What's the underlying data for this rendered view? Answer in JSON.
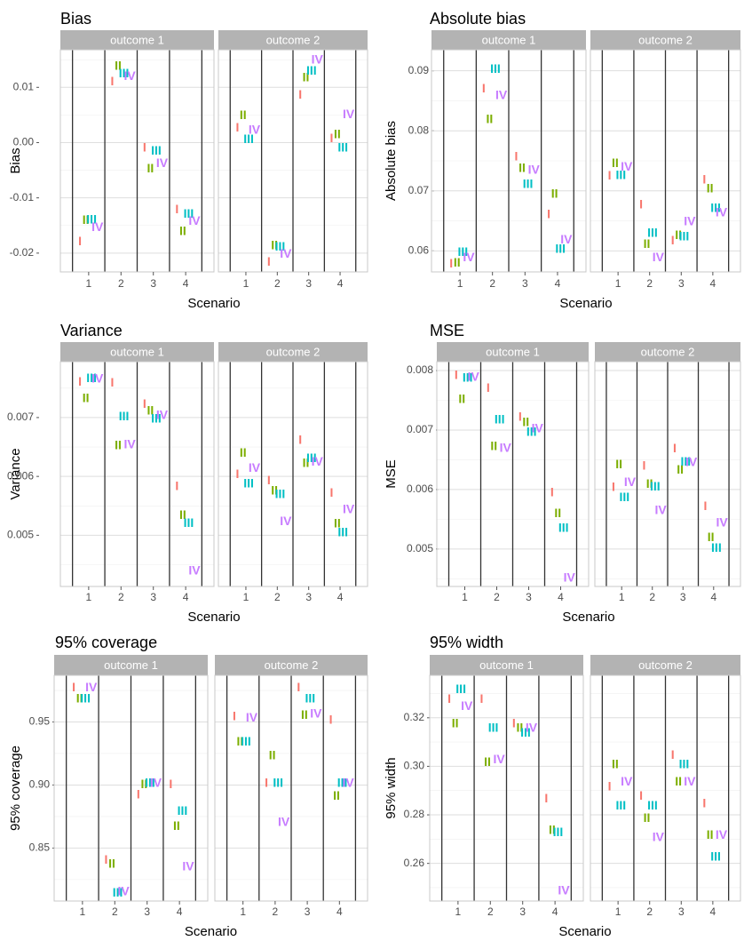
{
  "figure": {
    "colors": {
      "I": "#F8766D",
      "II": "#7CAE00",
      "III": "#00BFC4",
      "IV": "#C77CFF"
    },
    "facets": [
      "outcome 1",
      "outcome 2"
    ],
    "method_labels": [
      "I",
      "II",
      "III",
      "IV"
    ]
  },
  "chart_data": [
    {
      "type": "scatter",
      "title": "Bias",
      "xlabel": "Scenario",
      "ylabel": "Bias",
      "categories": [
        "1",
        "2",
        "3",
        "4"
      ],
      "ylim": [
        -0.0234,
        0.0168
      ],
      "yticks": [
        -0.02,
        -0.01,
        0.0,
        0.01
      ],
      "ytick_labels": [
        "-0.02",
        "-0.01",
        "0.00",
        "0.01"
      ],
      "panels": [
        {
          "facet": "outcome 1",
          "series": [
            {
              "name": "I",
              "values": [
                -0.0178,
                0.0112,
                -0.0008,
                -0.012
              ]
            },
            {
              "name": "II",
              "values": [
                -0.0139,
                0.014,
                -0.0046,
                -0.0159
              ]
            },
            {
              "name": "III",
              "values": [
                -0.0138,
                0.0126,
                -0.0014,
                -0.0128
              ]
            },
            {
              "name": "IV",
              "values": [
                -0.0152,
                0.0121,
                -0.0036,
                -0.0141
              ]
            }
          ]
        },
        {
          "facet": "outcome 2",
          "series": [
            {
              "name": "I",
              "values": [
                0.0028,
                -0.0215,
                0.0088,
                0.0009
              ]
            },
            {
              "name": "II",
              "values": [
                0.0051,
                -0.0185,
                0.0119,
                0.0016
              ]
            },
            {
              "name": "III",
              "values": [
                0.0007,
                -0.0187,
                0.0131,
                -0.0008
              ]
            },
            {
              "name": "IV",
              "values": [
                0.0024,
                -0.02,
                0.0151,
                0.0052
              ]
            }
          ]
        }
      ]
    },
    {
      "type": "scatter",
      "title": "Absolute bias",
      "xlabel": "Scenario",
      "ylabel": "Absolute bias",
      "categories": [
        "1",
        "2",
        "3",
        "4"
      ],
      "ylim": [
        0.0565,
        0.0935
      ],
      "yticks": [
        0.06,
        0.07,
        0.08,
        0.09
      ],
      "ytick_labels": [
        "0.06",
        "0.07",
        "0.08",
        "0.09"
      ],
      "panels": [
        {
          "facet": "outcome 1",
          "series": [
            {
              "name": "I",
              "values": [
                0.058,
                0.0871,
                0.0758,
                0.0662
              ]
            },
            {
              "name": "II",
              "values": [
                0.0581,
                0.082,
                0.0739,
                0.0696
              ]
            },
            {
              "name": "III",
              "values": [
                0.0599,
                0.0904,
                0.0712,
                0.0604
              ]
            },
            {
              "name": "IV",
              "values": [
                0.059,
                0.086,
                0.0736,
                0.062
              ]
            }
          ]
        },
        {
          "facet": "outcome 2",
          "series": [
            {
              "name": "I",
              "values": [
                0.0726,
                0.0678,
                0.0618,
                0.072
              ]
            },
            {
              "name": "II",
              "values": [
                0.0747,
                0.0612,
                0.0627,
                0.0705
              ]
            },
            {
              "name": "III",
              "values": [
                0.0727,
                0.0631,
                0.0625,
                0.0672
              ]
            },
            {
              "name": "IV",
              "values": [
                0.0741,
                0.059,
                0.065,
                0.0665
              ]
            }
          ]
        }
      ]
    },
    {
      "type": "scatter",
      "title": "Variance",
      "xlabel": "Scenario",
      "ylabel": "Variance",
      "categories": [
        "1",
        "2",
        "3",
        "4"
      ],
      "ylim": [
        0.00413,
        0.00795
      ],
      "yticks": [
        0.005,
        0.006,
        0.007
      ],
      "ytick_labels": [
        "0.005",
        "0.006",
        "0.007"
      ],
      "panels": [
        {
          "facet": "outcome 1",
          "series": [
            {
              "name": "I",
              "values": [
                0.00762,
                0.0076,
                0.00724,
                0.00584
              ]
            },
            {
              "name": "II",
              "values": [
                0.00734,
                0.00654,
                0.00713,
                0.00535
              ]
            },
            {
              "name": "III",
              "values": [
                0.00768,
                0.00703,
                0.00699,
                0.00522
              ]
            },
            {
              "name": "IV",
              "values": [
                0.00767,
                0.00655,
                0.00705,
                0.00441
              ]
            }
          ]
        },
        {
          "facet": "outcome 2",
          "series": [
            {
              "name": "I",
              "values": [
                0.00605,
                0.00594,
                0.00663,
                0.00573
              ]
            },
            {
              "name": "II",
              "values": [
                0.00641,
                0.00577,
                0.00624,
                0.00521
              ]
            },
            {
              "name": "III",
              "values": [
                0.00589,
                0.00571,
                0.00632,
                0.00506
              ]
            },
            {
              "name": "IV",
              "values": [
                0.00615,
                0.00525,
                0.00626,
                0.00545
              ]
            }
          ]
        }
      ]
    },
    {
      "type": "scatter",
      "title": "MSE",
      "xlabel": "Scenario",
      "ylabel": "MSE",
      "categories": [
        "1",
        "2",
        "3",
        "4"
      ],
      "ylim": [
        0.00437,
        0.00815
      ],
      "yticks": [
        0.005,
        0.006,
        0.007,
        0.008
      ],
      "ytick_labels": [
        "0.005",
        "0.006",
        "0.007",
        "0.008"
      ],
      "panels": [
        {
          "facet": "outcome 1",
          "series": [
            {
              "name": "I",
              "values": [
                0.00793,
                0.00772,
                0.00723,
                0.00596
              ]
            },
            {
              "name": "II",
              "values": [
                0.00753,
                0.00674,
                0.00714,
                0.00561
              ]
            },
            {
              "name": "III",
              "values": [
                0.00789,
                0.00719,
                0.00698,
                0.00536
              ]
            },
            {
              "name": "IV",
              "values": [
                0.0079,
                0.00671,
                0.00704,
                0.00453
              ]
            }
          ]
        },
        {
          "facet": "outcome 2",
          "series": [
            {
              "name": "I",
              "values": [
                0.00605,
                0.00641,
                0.0067,
                0.00573
              ]
            },
            {
              "name": "II",
              "values": [
                0.00643,
                0.0061,
                0.00634,
                0.00521
              ]
            },
            {
              "name": "III",
              "values": [
                0.00588,
                0.00606,
                0.00648,
                0.00503
              ]
            },
            {
              "name": "IV",
              "values": [
                0.00613,
                0.00566,
                0.00647,
                0.00545
              ]
            }
          ]
        }
      ]
    },
    {
      "type": "scatter",
      "title": "95% coverage",
      "xlabel": "Scenario",
      "ylabel": "95% coverage",
      "categories": [
        "1",
        "2",
        "3",
        "4"
      ],
      "ylim": [
        0.808,
        0.987
      ],
      "yticks": [
        0.85,
        0.9,
        0.95
      ],
      "ytick_labels": [
        "0.85",
        "0.90",
        "0.95"
      ],
      "panels": [
        {
          "facet": "outcome 1",
          "series": [
            {
              "name": "I",
              "values": [
                0.978,
                0.841,
                0.893,
                0.901
              ]
            },
            {
              "name": "II",
              "values": [
                0.969,
                0.838,
                0.901,
                0.868
              ]
            },
            {
              "name": "III",
              "values": [
                0.969,
                0.815,
                0.902,
                0.88
              ]
            },
            {
              "name": "IV",
              "values": [
                0.978,
                0.816,
                0.902,
                0.836
              ]
            }
          ]
        },
        {
          "facet": "outcome 2",
          "series": [
            {
              "name": "I",
              "values": [
                0.955,
                0.902,
                0.978,
                0.952
              ]
            },
            {
              "name": "II",
              "values": [
                0.935,
                0.924,
                0.956,
                0.892
              ]
            },
            {
              "name": "III",
              "values": [
                0.935,
                0.902,
                0.969,
                0.902
              ]
            },
            {
              "name": "IV",
              "values": [
                0.954,
                0.871,
                0.957,
                0.902
              ]
            }
          ]
        }
      ]
    },
    {
      "type": "scatter",
      "title": "95% width",
      "xlabel": "Scenario",
      "ylabel": "95% width",
      "categories": [
        "1",
        "2",
        "3",
        "4"
      ],
      "ylim": [
        0.2445,
        0.3375
      ],
      "yticks": [
        0.26,
        0.28,
        0.3,
        0.32
      ],
      "ytick_labels": [
        "0.26",
        "0.28",
        "0.30",
        "0.32"
      ],
      "panels": [
        {
          "facet": "outcome 1",
          "series": [
            {
              "name": "I",
              "values": [
                0.328,
                0.328,
                0.318,
                0.287
              ]
            },
            {
              "name": "II",
              "values": [
                0.318,
                0.302,
                0.316,
                0.274
              ]
            },
            {
              "name": "III",
              "values": [
                0.332,
                0.316,
                0.314,
                0.273
              ]
            },
            {
              "name": "IV",
              "values": [
                0.325,
                0.303,
                0.316,
                0.249
              ]
            }
          ]
        },
        {
          "facet": "outcome 2",
          "series": [
            {
              "name": "I",
              "values": [
                0.292,
                0.288,
                0.305,
                0.285
              ]
            },
            {
              "name": "II",
              "values": [
                0.301,
                0.279,
                0.294,
                0.272
              ]
            },
            {
              "name": "III",
              "values": [
                0.284,
                0.284,
                0.301,
                0.263
              ]
            },
            {
              "name": "IV",
              "values": [
                0.294,
                0.271,
                0.294,
                0.272
              ]
            }
          ]
        }
      ]
    }
  ]
}
